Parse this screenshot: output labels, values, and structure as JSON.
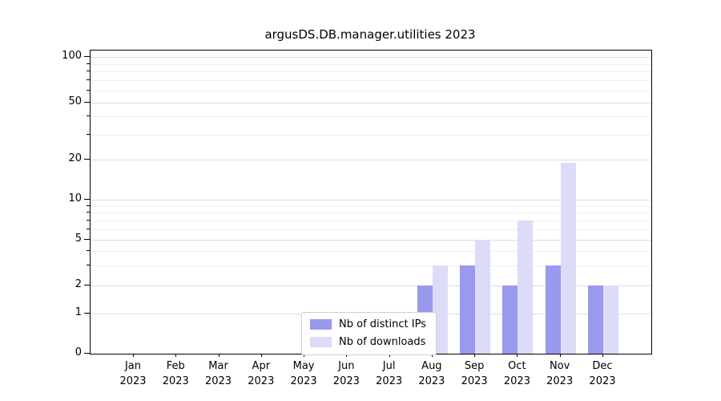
{
  "title": "argusDS.DB.manager.utilities 2023",
  "colors": {
    "distinct_ips": "#9999ee",
    "downloads": "#dcdcf8",
    "grid_major": "#dedede",
    "grid_minor": "#eeeeee",
    "axis": "#000000",
    "legend_border": "#cfcfcf"
  },
  "chart_data": {
    "type": "bar",
    "title": "argusDS.DB.manager.utilities 2023",
    "categories": [
      "Jan 2023",
      "Feb 2023",
      "Mar 2023",
      "Apr 2023",
      "May 2023",
      "Jun 2023",
      "Jul 2023",
      "Aug 2023",
      "Sep 2023",
      "Oct 2023",
      "Nov 2023",
      "Dec 2023"
    ],
    "series": [
      {
        "name": "Nb of distinct IPs",
        "color_key": "distinct_ips",
        "values": [
          0,
          0,
          0,
          0,
          0,
          0,
          0,
          2,
          3,
          2,
          3,
          2
        ]
      },
      {
        "name": "Nb of downloads",
        "color_key": "downloads",
        "values": [
          0,
          0,
          0,
          0,
          0,
          0,
          0,
          3,
          5,
          7,
          19,
          2
        ]
      }
    ],
    "xlabel": "",
    "ylabel": "",
    "yscale": "log-like (symlog)",
    "yticks": [
      0,
      1,
      2,
      5,
      10,
      20,
      50,
      100
    ],
    "minor_yticks": [
      3,
      4,
      6,
      7,
      8,
      9,
      30,
      40,
      60,
      70,
      80,
      90
    ],
    "ylim": [
      0,
      100
    ],
    "grid": true,
    "legend_position": "lower center"
  },
  "legend": {
    "items": [
      {
        "label": "Nb of distinct IPs"
      },
      {
        "label": "Nb of downloads"
      }
    ]
  }
}
